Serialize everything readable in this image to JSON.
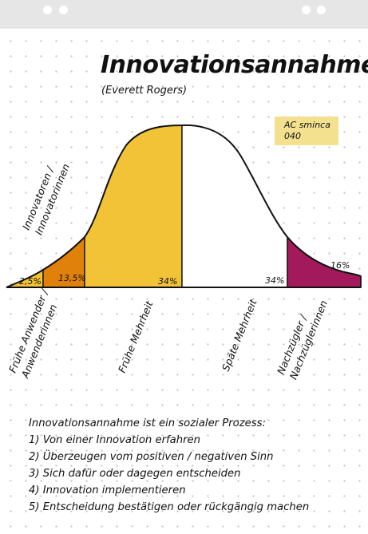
{
  "title": "Innovationsannahme",
  "subtitle": "(Everett Rogers)",
  "note": {
    "line1": "AC sminca",
    "line2": "040"
  },
  "colors": {
    "innovators": "#f2c237",
    "early_adopters": "#e0810b",
    "early_majority": "#f2c237",
    "late_majority": "#ffffff",
    "laggards": "#a31a5c",
    "note_background": "#f3e190"
  },
  "chart_data": {
    "type": "area",
    "categories": [
      "Innovatoren / Innovatorinnen",
      "Frühe Anwender / Anwenderinnen",
      "Frühe Mehrheit",
      "Späte Mehrheit",
      "Nachzügler / Nachzüglerinnen"
    ],
    "segments": [
      {
        "label_line1": "Innovatoren /",
        "label_line2": "Innovatorinnen",
        "percent": "2,5%",
        "value": 2.5
      },
      {
        "label_line1": "Frühe Anwender /",
        "label_line2": "Anwenderinnen",
        "percent": "13,5%",
        "value": 13.5
      },
      {
        "label_line1": "Frühe Mehrheit",
        "label_line2": "",
        "percent": "34%",
        "value": 34
      },
      {
        "label_line1": "Späte Mehrheit",
        "label_line2": "",
        "percent": "34%",
        "value": 34
      },
      {
        "label_line1": "Nachzügler /",
        "label_line2": "Nachzüglerinnen",
        "percent": "16%",
        "value": 16
      }
    ]
  },
  "process": {
    "heading": "Innovationsannahme ist ein sozialer Prozess:",
    "steps": [
      "1) Von einer Innovation erfahren",
      "2) Überzeugen vom positiven / negativen Sinn",
      "3) Sich dafür oder dagegen entscheiden",
      "4) Innovation implementieren",
      "5) Entscheidung bestätigen oder rückgängig machen"
    ]
  }
}
